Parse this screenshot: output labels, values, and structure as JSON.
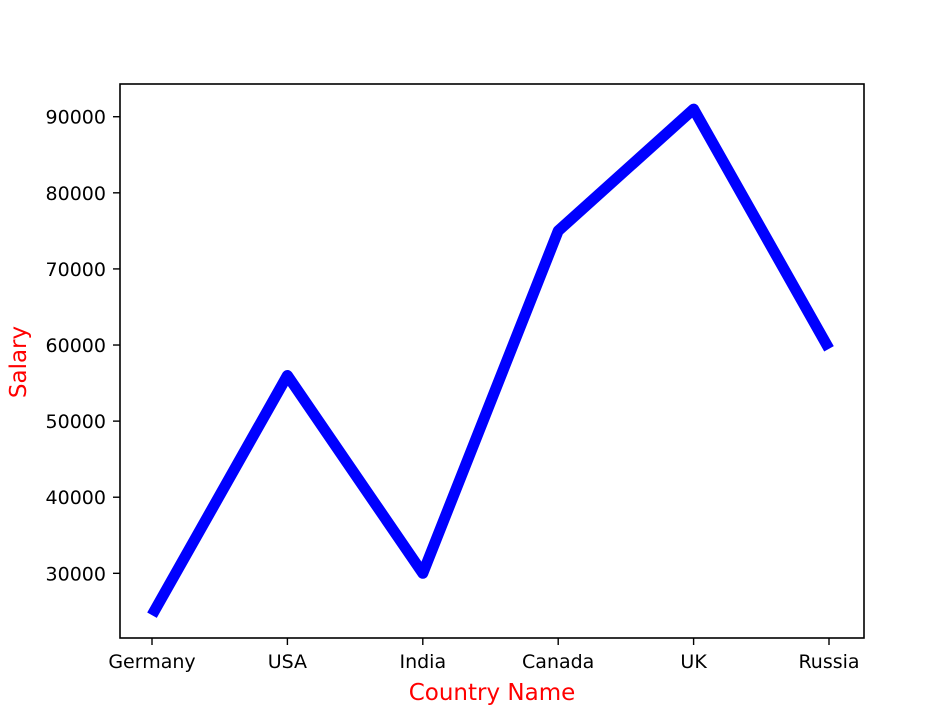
{
  "chart_data": {
    "type": "line",
    "categories": [
      "Germany",
      "USA",
      "India",
      "Canada",
      "UK",
      "Russia"
    ],
    "series": [
      {
        "values": [
          24500,
          56000,
          30000,
          75000,
          91000,
          59500
        ],
        "color": "#0000ff"
      }
    ],
    "title": "",
    "xlabel": "Country Name",
    "ylabel": "Salary",
    "label_color": "#ff0000",
    "ylim": [
      21500,
      94300
    ],
    "yticks": [
      30000,
      40000,
      50000,
      60000,
      70000,
      80000,
      90000
    ],
    "grid": false,
    "legend": "none"
  }
}
